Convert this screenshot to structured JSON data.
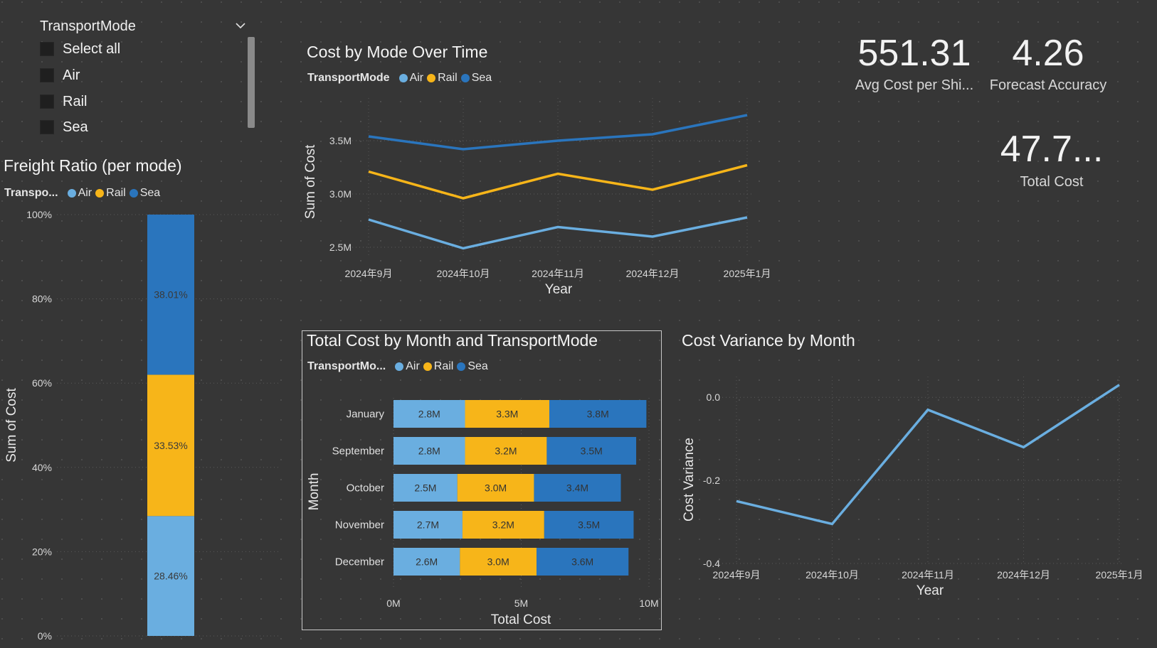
{
  "colors": {
    "background": "#363636",
    "air": "#6aaee0",
    "rail": "#f7b519",
    "sea": "#2a75bd",
    "variance_line": "#6aaee0"
  },
  "slicer": {
    "title": "TransportMode",
    "icon": "chevron-down-icon",
    "items": [
      {
        "label": "Select all",
        "checked": false
      },
      {
        "label": "Air",
        "checked": false
      },
      {
        "label": "Rail",
        "checked": false
      },
      {
        "label": "Sea",
        "checked": false
      }
    ]
  },
  "freight_ratio": {
    "title": "Freight Ratio (per mode)",
    "legend_title": "Transpo...",
    "legend": [
      "Air",
      "Rail",
      "Sea"
    ]
  },
  "cost_over_time": {
    "title": "Cost by Mode Over Time",
    "legend_title": "TransportMode",
    "legend": [
      "Air",
      "Rail",
      "Sea"
    ]
  },
  "total_cost_by_month": {
    "title": "Total Cost by Month and TransportMode",
    "legend_title": "TransportMo...",
    "legend": [
      "Air",
      "Rail",
      "Sea"
    ]
  },
  "cost_variance": {
    "title": "Cost Variance by Month"
  },
  "cards": {
    "avg_cost": {
      "value": "551.31",
      "label": "Avg Cost per Shi..."
    },
    "forecast": {
      "value": "4.26",
      "label": "Forecast Accuracy"
    },
    "total_cost": {
      "value": "47.7...",
      "label": "Total Cost"
    }
  },
  "chart_data": [
    {
      "id": "freight_ratio",
      "type": "bar",
      "stacked": "100%",
      "orientation": "vertical",
      "title": "Freight Ratio (per mode)",
      "xlabel": "",
      "ylabel": "Sum of Cost",
      "ylim": [
        0,
        100
      ],
      "y_ticks": [
        "0%",
        "20%",
        "40%",
        "60%",
        "80%",
        "100%"
      ],
      "series": [
        {
          "name": "Air",
          "values": [
            28.46
          ],
          "label": "28.46%"
        },
        {
          "name": "Rail",
          "values": [
            33.53
          ],
          "label": "33.53%"
        },
        {
          "name": "Sea",
          "values": [
            38.01
          ],
          "label": "38.01%"
        }
      ],
      "legend": "top-left",
      "grid": true
    },
    {
      "id": "cost_over_time",
      "type": "line",
      "title": "Cost by Mode Over Time",
      "xlabel": "Year",
      "ylabel": "Sum of Cost",
      "x": [
        "2024年9月",
        "2024年10月",
        "2024年11月",
        "2024年12月",
        "2025年1月"
      ],
      "y_ticks": [
        "2.5M",
        "3.0M",
        "3.5M"
      ],
      "ylim": [
        2.4,
        3.9
      ],
      "series": [
        {
          "name": "Air",
          "values": [
            2.76,
            2.49,
            2.69,
            2.6,
            2.78
          ]
        },
        {
          "name": "Rail",
          "values": [
            3.21,
            2.96,
            3.19,
            3.04,
            3.27
          ]
        },
        {
          "name": "Sea",
          "values": [
            3.54,
            3.42,
            3.5,
            3.56,
            3.74
          ]
        }
      ],
      "legend": "top-left",
      "grid": true
    },
    {
      "id": "total_cost_by_month",
      "type": "bar",
      "stacked": "stacked",
      "orientation": "horizontal",
      "title": "Total Cost by Month and TransportMode",
      "xlabel": "Total Cost",
      "ylabel": "Month",
      "categories": [
        "January",
        "September",
        "October",
        "November",
        "December"
      ],
      "x_ticks": [
        "0M",
        "5M",
        "10M"
      ],
      "xlim": [
        0,
        10
      ],
      "series": [
        {
          "name": "Air",
          "values": [
            2.8,
            2.8,
            2.5,
            2.7,
            2.6
          ],
          "labels": [
            "2.8M",
            "2.8M",
            "2.5M",
            "2.7M",
            "2.6M"
          ]
        },
        {
          "name": "Rail",
          "values": [
            3.3,
            3.2,
            3.0,
            3.2,
            3.0
          ],
          "labels": [
            "3.3M",
            "3.2M",
            "3.0M",
            "3.2M",
            "3.0M"
          ]
        },
        {
          "name": "Sea",
          "values": [
            3.8,
            3.5,
            3.4,
            3.5,
            3.6
          ],
          "labels": [
            "3.8M",
            "3.5M",
            "3.4M",
            "3.5M",
            "3.6M"
          ]
        }
      ],
      "legend": "top-left",
      "grid": true
    },
    {
      "id": "cost_variance",
      "type": "line",
      "title": "Cost Variance by Month",
      "xlabel": "Year",
      "ylabel": "Cost Variance",
      "x": [
        "2024年9月",
        "2024年10月",
        "2024年11月",
        "2024年12月",
        "2025年1月"
      ],
      "y_ticks": [
        "-0.4",
        "-0.2",
        "0.0"
      ],
      "ylim": [
        -0.4,
        0.05
      ],
      "series": [
        {
          "name": "Cost Variance",
          "values": [
            -0.25,
            -0.305,
            -0.03,
            -0.12,
            0.03
          ]
        }
      ],
      "grid": true
    }
  ]
}
